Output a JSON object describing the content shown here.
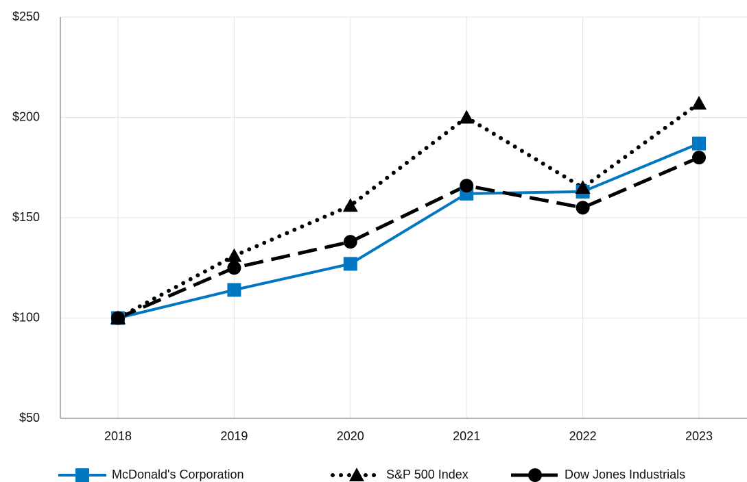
{
  "chart_data": {
    "type": "line",
    "categories": [
      "2018",
      "2019",
      "2020",
      "2021",
      "2022",
      "2023"
    ],
    "series": [
      {
        "name": "McDonald's Corporation",
        "color": "#0077c0",
        "line_style": "solid",
        "marker": "square",
        "values": [
          100,
          114,
          127,
          162,
          163,
          187
        ]
      },
      {
        "name": "S&P 500 Index",
        "color": "#000000",
        "line_style": "dotted",
        "marker": "triangle",
        "values": [
          100,
          131,
          156,
          200,
          165,
          207
        ]
      },
      {
        "name": "Dow Jones Industrials",
        "color": "#000000",
        "line_style": "dashed",
        "marker": "circle",
        "values": [
          100,
          125,
          138,
          166,
          155,
          180
        ]
      }
    ],
    "ylim": [
      50,
      250
    ],
    "yticks": [
      {
        "value": 50,
        "label": "$50"
      },
      {
        "value": 100,
        "label": "$100"
      },
      {
        "value": 150,
        "label": "$150"
      },
      {
        "value": 200,
        "label": "$200"
      },
      {
        "value": 250,
        "label": "$250"
      }
    ],
    "grid": true,
    "legend": "bottom"
  }
}
